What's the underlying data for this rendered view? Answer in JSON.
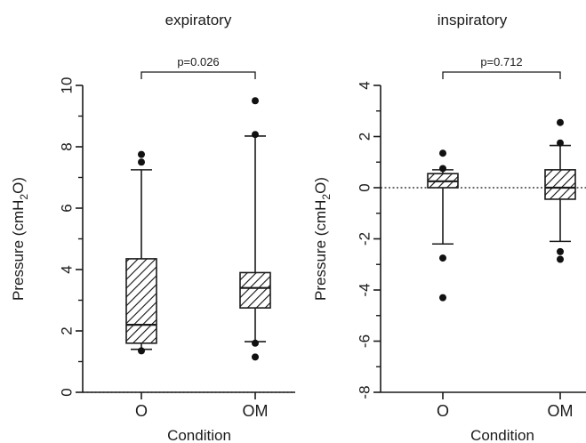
{
  "chart_data": [
    {
      "type": "box",
      "title": "expiratory",
      "xlabel": "Condition",
      "ylabel": "Pressure (cmH2O)",
      "ylabel_parts": {
        "pre": "Pressure (cmH",
        "sub": "2",
        "post": "O)"
      },
      "ylim": [
        0,
        10
      ],
      "yticks": [
        "0",
        "2",
        "4",
        "6",
        "8",
        "10"
      ],
      "reference_line": 0,
      "categories": [
        "O",
        "OM"
      ],
      "boxes": [
        {
          "category": "O",
          "whisker_low": 1.4,
          "q1": 1.6,
          "median": 2.2,
          "q3": 4.35,
          "whisker_high": 7.25,
          "outliers": [
            7.75,
            7.5,
            1.35
          ]
        },
        {
          "category": "OM",
          "whisker_low": 1.65,
          "q1": 2.75,
          "median": 3.4,
          "q3": 3.9,
          "whisker_high": 8.35,
          "outliers": [
            9.5,
            8.4,
            1.6,
            1.15
          ]
        }
      ],
      "significance": {
        "label": "p=0.026",
        "from": "O",
        "to": "OM"
      }
    },
    {
      "type": "box",
      "title": "inspiratory",
      "xlabel": "Condition",
      "ylabel": "Pressure (cmH2O)",
      "ylabel_parts": {
        "pre": "Pressure (cmH",
        "sub": "2",
        "post": "O)"
      },
      "ylim": [
        -8,
        4
      ],
      "yticks": [
        "-8",
        "-6",
        "-4",
        "-2",
        "0",
        "2",
        "4"
      ],
      "reference_line": 0,
      "categories": [
        "O",
        "OM"
      ],
      "boxes": [
        {
          "category": "O",
          "whisker_low": -2.2,
          "q1": 0.0,
          "median": 0.25,
          "q3": 0.55,
          "whisker_high": 0.7,
          "outliers": [
            1.35,
            0.75,
            -2.75,
            -4.3
          ]
        },
        {
          "category": "OM",
          "whisker_low": -2.1,
          "q1": -0.45,
          "median": 0.0,
          "q3": 0.7,
          "whisker_high": 1.65,
          "outliers": [
            2.55,
            1.75,
            -2.5,
            -2.8
          ]
        }
      ],
      "significance": {
        "label": "p=0.712",
        "from": "O",
        "to": "OM"
      }
    }
  ]
}
